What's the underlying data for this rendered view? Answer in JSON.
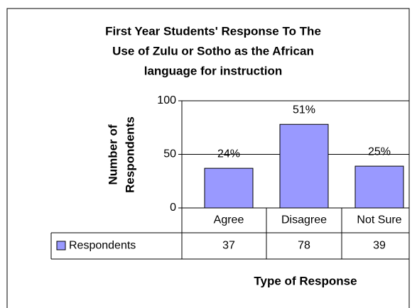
{
  "chart_data": {
    "type": "bar",
    "title_lines": [
      "First Year Students' Response To The",
      "Use of Zulu or Sotho as the African",
      "language for instruction"
    ],
    "y_axis_label_lines": [
      "Number of",
      "Respondents"
    ],
    "x_axis_label": "Type of Response",
    "categories": [
      "Agree",
      "Disagree",
      "Not Sure"
    ],
    "series": [
      {
        "name": "Respondents",
        "color": "#9999ff",
        "values": [
          37,
          78,
          39
        ]
      }
    ],
    "percentages": [
      24,
      51,
      25
    ],
    "percentage_labels": [
      "24%",
      "51%",
      "25%"
    ],
    "ylim": [
      0,
      100
    ],
    "yticks": [
      0,
      50,
      100
    ],
    "grid": true,
    "data_table": true
  }
}
